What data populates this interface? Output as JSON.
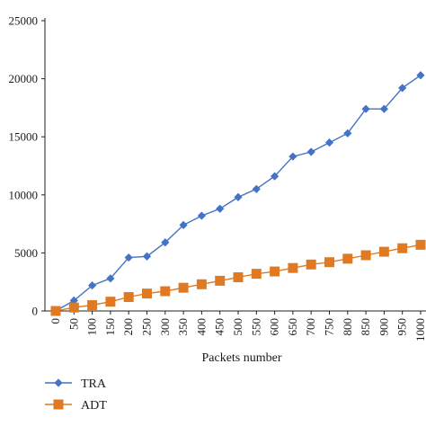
{
  "chart_data": {
    "type": "line",
    "xlabel": "Packets number",
    "ylabel": "",
    "ylim": [
      0,
      25000
    ],
    "yticks": [
      0,
      5000,
      10000,
      15000,
      20000,
      25000
    ],
    "categories": [
      "0",
      "50",
      "100",
      "150",
      "200",
      "250",
      "300",
      "350",
      "400",
      "450",
      "500",
      "550",
      "600",
      "650",
      "700",
      "750",
      "800",
      "850",
      "900",
      "950",
      "1000"
    ],
    "grid": false,
    "legend_position": "bottom-left",
    "series": [
      {
        "name": "TRA",
        "color": "#4472c4",
        "marker": "diamond",
        "values": [
          0,
          900,
          2200,
          2800,
          4600,
          4700,
          5900,
          7400,
          8200,
          8800,
          9800,
          10500,
          11600,
          13300,
          13700,
          14500,
          15300,
          17400,
          17400,
          19200,
          20300
        ]
      },
      {
        "name": "ADT",
        "color": "#e07a22",
        "marker": "square",
        "values": [
          0,
          300,
          500,
          800,
          1200,
          1500,
          1700,
          2000,
          2300,
          2600,
          2900,
          3200,
          3400,
          3700,
          4000,
          4200,
          4500,
          4800,
          5100,
          5400,
          5700
        ]
      }
    ]
  }
}
